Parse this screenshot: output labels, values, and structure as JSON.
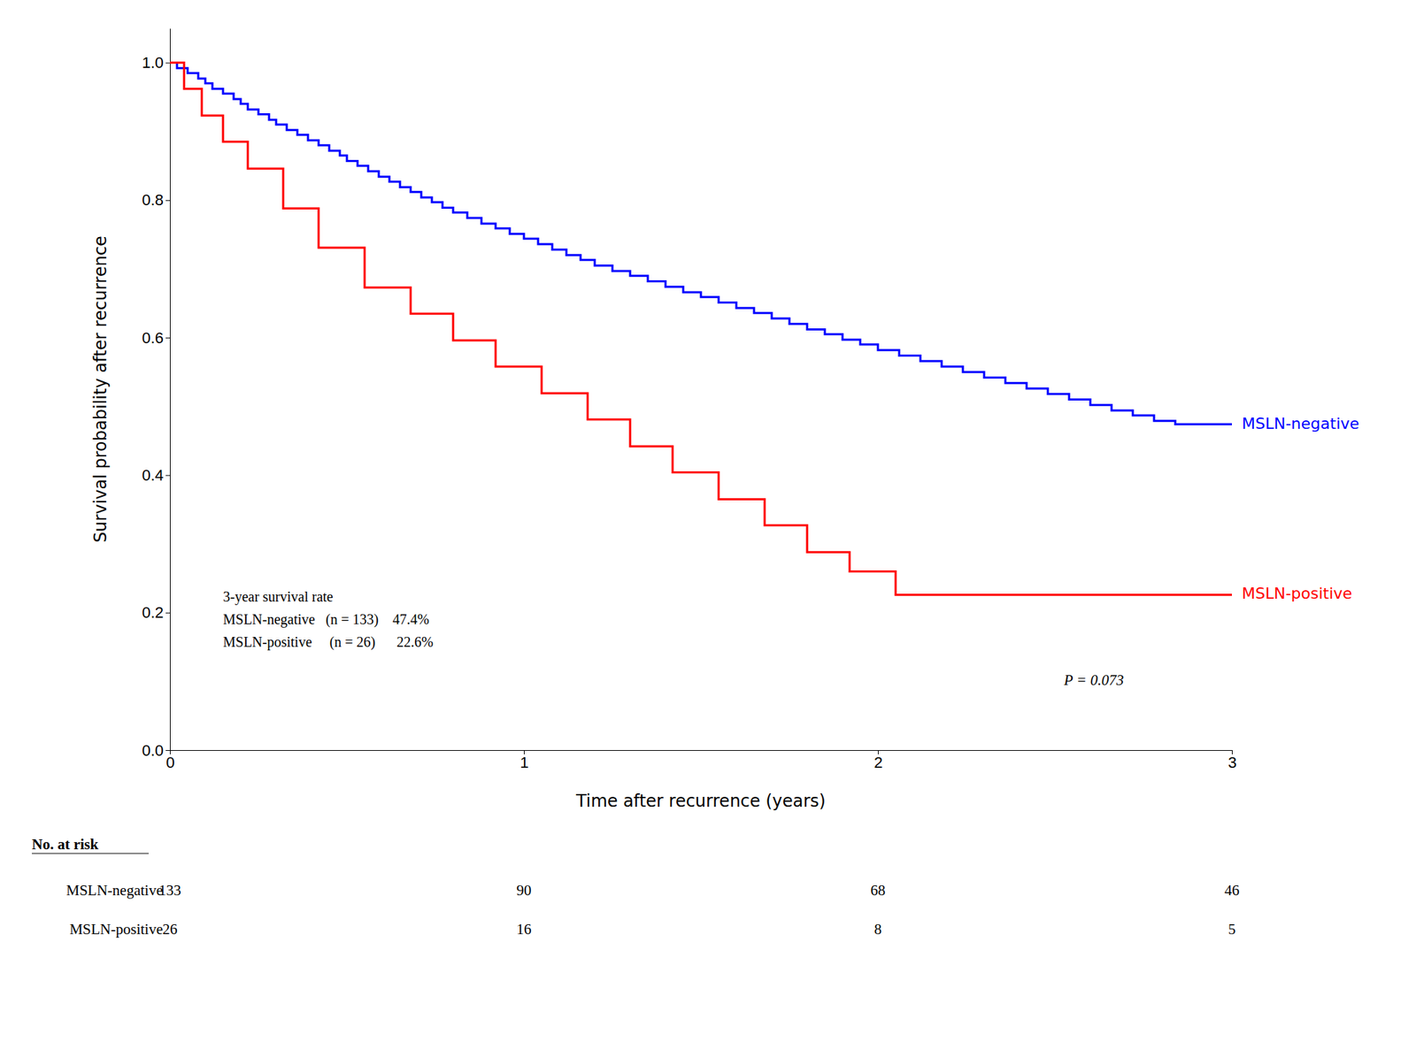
{
  "chart_data": {
    "type": "step",
    "xlabel": "Time after recurrence (years)",
    "ylabel": "Survival probability after recurrence",
    "xlim": [
      0,
      3
    ],
    "ylim": [
      0.0,
      1.05
    ],
    "xticks": [
      0,
      1,
      2,
      3
    ],
    "yticks": [
      {
        "value": 0.0,
        "label": "0.0"
      },
      0.2,
      0.4,
      0.6,
      0.8,
      {
        "value": 1.0,
        "label": "1.0"
      }
    ],
    "series": [
      {
        "name": "MSLN-negative",
        "color": "#0000FF",
        "x": [
          0.0,
          0.02,
          0.05,
          0.08,
          0.1,
          0.12,
          0.15,
          0.18,
          0.2,
          0.22,
          0.25,
          0.28,
          0.3,
          0.33,
          0.36,
          0.39,
          0.42,
          0.45,
          0.48,
          0.5,
          0.53,
          0.56,
          0.59,
          0.62,
          0.65,
          0.68,
          0.71,
          0.74,
          0.77,
          0.8,
          0.84,
          0.88,
          0.92,
          0.96,
          1.0,
          1.04,
          1.08,
          1.12,
          1.16,
          1.2,
          1.25,
          1.3,
          1.35,
          1.4,
          1.45,
          1.5,
          1.55,
          1.6,
          1.65,
          1.7,
          1.75,
          1.8,
          1.85,
          1.9,
          1.95,
          2.0,
          2.06,
          2.12,
          2.18,
          2.24,
          2.3,
          2.36,
          2.42,
          2.48,
          2.54,
          2.6,
          2.66,
          2.72,
          2.78,
          2.84,
          2.9,
          2.95,
          3.0
        ],
        "values": [
          1.0,
          0.992,
          0.985,
          0.977,
          0.97,
          0.962,
          0.955,
          0.947,
          0.94,
          0.932,
          0.925,
          0.917,
          0.91,
          0.902,
          0.895,
          0.887,
          0.88,
          0.872,
          0.865,
          0.857,
          0.85,
          0.842,
          0.834,
          0.827,
          0.819,
          0.812,
          0.804,
          0.797,
          0.789,
          0.782,
          0.774,
          0.766,
          0.759,
          0.751,
          0.744,
          0.736,
          0.728,
          0.72,
          0.713,
          0.705,
          0.697,
          0.69,
          0.682,
          0.674,
          0.666,
          0.659,
          0.651,
          0.643,
          0.636,
          0.628,
          0.62,
          0.612,
          0.605,
          0.597,
          0.59,
          0.582,
          0.574,
          0.566,
          0.558,
          0.55,
          0.542,
          0.534,
          0.526,
          0.518,
          0.51,
          0.502,
          0.494,
          0.487,
          0.479,
          0.474,
          0.474,
          0.474,
          0.474
        ]
      },
      {
        "name": "MSLN-positive",
        "color": "#FF0000",
        "x": [
          0.0,
          0.04,
          0.09,
          0.15,
          0.22,
          0.32,
          0.42,
          0.55,
          0.68,
          0.8,
          0.92,
          1.05,
          1.18,
          1.3,
          1.42,
          1.55,
          1.68,
          1.8,
          1.92,
          2.05,
          2.2,
          2.35,
          2.5,
          3.0
        ],
        "values": [
          1.0,
          0.962,
          0.923,
          0.885,
          0.846,
          0.788,
          0.731,
          0.673,
          0.635,
          0.596,
          0.558,
          0.519,
          0.481,
          0.442,
          0.404,
          0.365,
          0.327,
          0.288,
          0.26,
          0.226,
          0.226,
          0.226,
          0.226,
          0.226
        ]
      }
    ],
    "annotations": [
      "3-year survival rate",
      "MSLN-negative   (n = 133)    47.4%",
      "MSLN-positive     (n = 26)      22.6%"
    ],
    "p_value_text": "P = 0.073",
    "risk_table": {
      "header": "No. at risk",
      "times": [
        0,
        1,
        2,
        3
      ],
      "rows": [
        {
          "name": "MSLN-negative",
          "values": [
            133,
            90,
            68,
            46
          ]
        },
        {
          "name": "MSLN-positive",
          "values": [
            26,
            16,
            8,
            5
          ]
        }
      ]
    }
  }
}
